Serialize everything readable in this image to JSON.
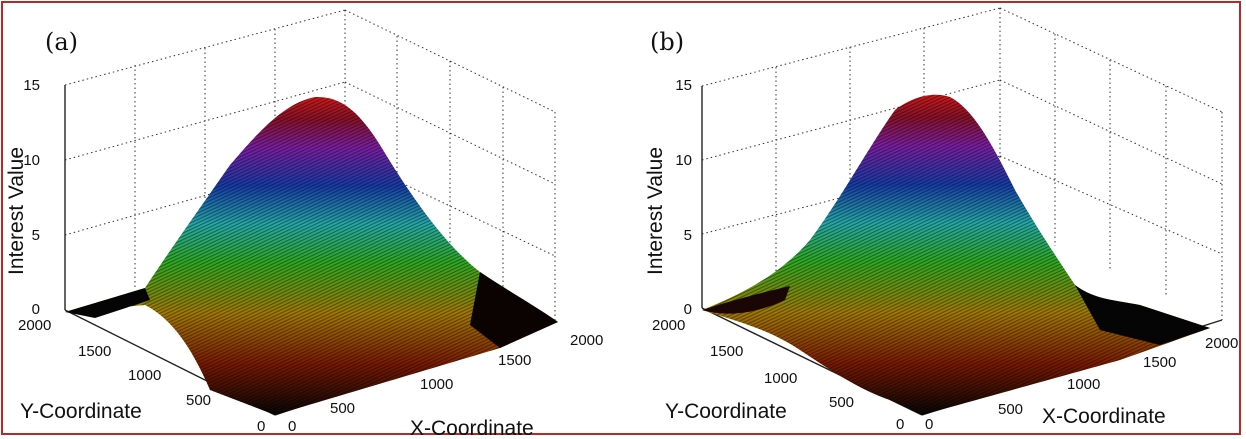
{
  "chart_data": [
    {
      "type": "surface",
      "panel_label": "(a)",
      "xlabel": "X-Coordinate",
      "ylabel": "Y-Coordinate",
      "zlabel": "Interest Value",
      "x_ticks": [
        "0",
        "500",
        "1000",
        "1500",
        "2000"
      ],
      "y_ticks": [
        "0",
        "500",
        "1000",
        "1500",
        "2000"
      ],
      "z_ticks": [
        "0",
        "5",
        "10",
        "15"
      ],
      "xlim": [
        0,
        2000
      ],
      "ylim": [
        0,
        2000
      ],
      "zlim": [
        0,
        15
      ],
      "peak": {
        "x": 1000,
        "y": 1000,
        "z": 14
      },
      "spread": {
        "sx": 650,
        "sy": 650
      },
      "colormap": [
        "#050505",
        "#7a1a00",
        "#a27a00",
        "#2eaa22",
        "#26a9a9",
        "#173ca8",
        "#7b1fa3",
        "#8a1228",
        "#d01a1a"
      ],
      "grid": true
    },
    {
      "type": "surface",
      "panel_label": "(b)",
      "xlabel": "X-Coordinate",
      "ylabel": "Y-Coordinate",
      "zlabel": "Interest Value",
      "x_ticks": [
        "0",
        "500",
        "1000",
        "1500",
        "2000"
      ],
      "y_ticks": [
        "0",
        "500",
        "1000",
        "1500",
        "2000"
      ],
      "z_ticks": [
        "0",
        "5",
        "10",
        "15"
      ],
      "xlim": [
        0,
        2000
      ],
      "ylim": [
        0,
        2000
      ],
      "zlim": [
        0,
        15
      ],
      "peak": {
        "x": 1000,
        "y": 1000,
        "z": 14
      },
      "spread": {
        "sx": 420,
        "sy": 900
      },
      "colormap": [
        "#050505",
        "#7a1a00",
        "#a27a00",
        "#2eaa22",
        "#26a9a9",
        "#173ca8",
        "#7b1fa3",
        "#8a1228",
        "#d01a1a"
      ],
      "grid": true
    }
  ]
}
